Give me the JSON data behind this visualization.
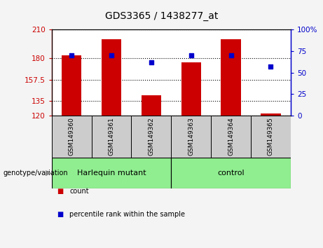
{
  "title": "GDS3365 / 1438277_at",
  "samples": [
    "GSM149360",
    "GSM149361",
    "GSM149362",
    "GSM149363",
    "GSM149364",
    "GSM149365"
  ],
  "count_values": [
    183,
    200,
    141,
    176,
    200,
    122
  ],
  "percentile_values": [
    70,
    70,
    62,
    70,
    70,
    57
  ],
  "ylim_left": [
    120,
    210
  ],
  "ylim_right": [
    0,
    100
  ],
  "yticks_left": [
    120,
    135,
    157.5,
    180,
    210
  ],
  "ytick_labels_left": [
    "120",
    "135",
    "157.5",
    "180",
    "210"
  ],
  "yticks_right": [
    0,
    25,
    50,
    75,
    100
  ],
  "ytick_labels_right": [
    "0",
    "25",
    "50",
    "75",
    "100%"
  ],
  "bar_color": "#cc0000",
  "dot_color": "#0000cc",
  "bar_width": 0.5,
  "groups": [
    {
      "label": "Harlequin mutant",
      "indices": [
        0,
        1,
        2
      ],
      "color": "#90ee90"
    },
    {
      "label": "control",
      "indices": [
        3,
        4,
        5
      ],
      "color": "#90ee90"
    }
  ],
  "group_label": "genotype/variation",
  "legend_items": [
    {
      "label": "count",
      "color": "#cc0000"
    },
    {
      "label": "percentile rank within the sample",
      "color": "#0000cc"
    }
  ],
  "grid_linestyle": "dotted",
  "plot_bg": "#ffffff",
  "sample_box_color": "#cccccc",
  "fig_bg": "#f4f4f4"
}
